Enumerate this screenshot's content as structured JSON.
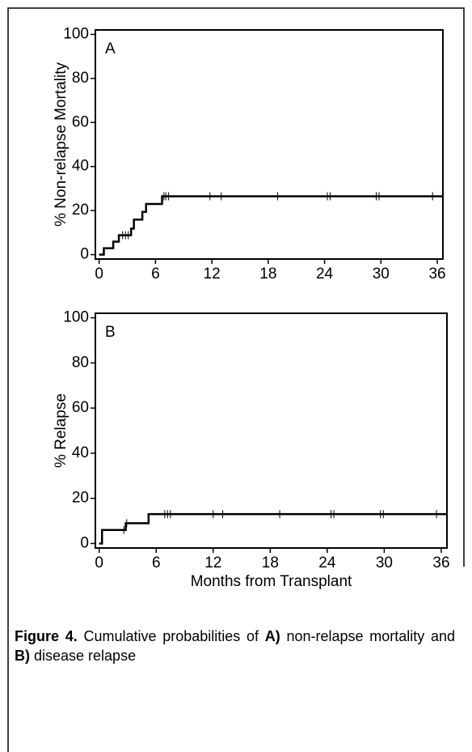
{
  "chart_data": [
    {
      "type": "step",
      "panel": "A",
      "ylabel": "% Non-relapse Mortality",
      "color": "#000000",
      "x": [
        0,
        0.5,
        1.5,
        2.1,
        3.4,
        3.7,
        4.6,
        5.0,
        6.7
      ],
      "values": [
        0,
        2.9,
        5.9,
        8.8,
        11.8,
        15.9,
        19.4,
        23,
        26.5
      ],
      "censored": [
        2.5,
        2.8,
        3.1,
        6.9,
        7.1,
        7.4,
        11.8,
        13,
        19,
        24.3,
        24.6,
        29.5,
        29.8,
        35.5
      ],
      "xlim": [
        -0.4,
        36.6
      ],
      "xticks": [
        0,
        6,
        12,
        18,
        24,
        30,
        36
      ],
      "ylim": [
        -2,
        102
      ],
      "yticks": [
        0,
        20,
        40,
        60,
        80,
        100
      ]
    },
    {
      "type": "step",
      "panel": "B",
      "ylabel": "% Relapse",
      "xlabel": "Months from Transplant",
      "color": "#000000",
      "x": [
        0,
        0.3,
        2.8,
        5.2
      ],
      "values": [
        0,
        6,
        9,
        13
      ],
      "censored": [
        2.6,
        2.9,
        6.9,
        7.2,
        7.5,
        12,
        13,
        19,
        24.4,
        24.7,
        29.6,
        29.9,
        35.5
      ],
      "xlim": [
        -0.4,
        36.6
      ],
      "xticks": [
        0,
        6,
        12,
        18,
        24,
        30,
        36
      ],
      "ylim": [
        -2,
        102
      ],
      "yticks": [
        0,
        20,
        40,
        60,
        80,
        100
      ]
    }
  ],
  "caption": [
    {
      "text": "Figure 4.",
      "bold": true
    },
    {
      "text": " Cumulative probabilities of ",
      "bold": false
    },
    {
      "text": "A)",
      "bold": true
    },
    {
      "text": " non-relapse mortality and ",
      "bold": false
    },
    {
      "text": "B)",
      "bold": true
    },
    {
      "text": " disease relapse",
      "bold": false
    }
  ]
}
